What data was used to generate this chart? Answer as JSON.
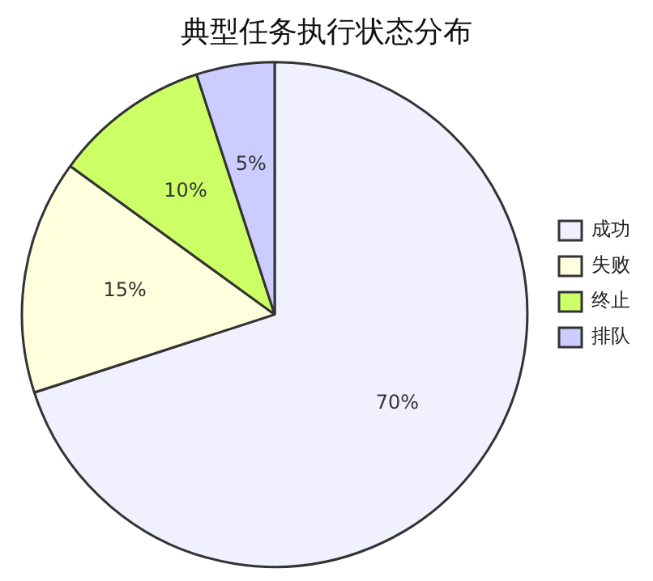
{
  "chart_data": {
    "type": "pie",
    "title": "典型任务执行状态分布",
    "categories": [
      "成功",
      "失败",
      "终止",
      "排队"
    ],
    "values": [
      70,
      15,
      10,
      5
    ],
    "colors": [
      "#f0f0ff",
      "#ffffdd",
      "#ccff66",
      "#ccccff"
    ],
    "value_labels": [
      "70%",
      "15%",
      "10%",
      "5%"
    ],
    "legend": "right"
  }
}
